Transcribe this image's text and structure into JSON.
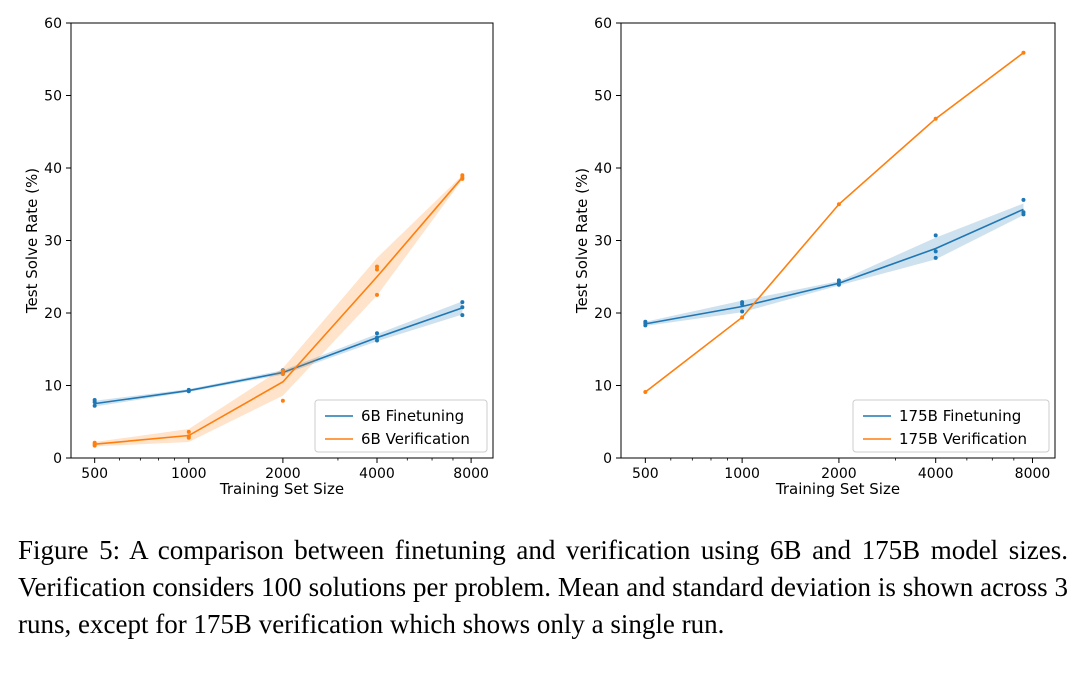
{
  "caption": "Figure 5: A comparison between finetuning and verification using 6B and 175B model sizes. Verification considers 100 solutions per problem. Mean and standard deviation is shown across 3 runs, except for 175B verification which shows only a single run.",
  "colors": {
    "finetuning": "#1f77b4",
    "verification": "#ff7f0e"
  },
  "chart_data": [
    {
      "type": "line",
      "xlabel": "Training Set Size",
      "ylabel": "Test Solve Rate (%)",
      "x_scale": "log2",
      "xlim": [
        420,
        9400
      ],
      "ylim": [
        0,
        60
      ],
      "xticks": [
        500,
        1000,
        2000,
        4000,
        8000
      ],
      "xtick_labels": [
        "500",
        "1000",
        "2000",
        "4000",
        "8000"
      ],
      "yticks": [
        0,
        10,
        20,
        30,
        40,
        50,
        60
      ],
      "legend_position": "lower-right",
      "series": [
        {
          "name": "6B Finetuning",
          "color_key": "finetuning",
          "x": [
            500,
            1000,
            2000,
            4000,
            7500
          ],
          "mean": [
            7.5,
            9.3,
            11.8,
            16.6,
            20.7
          ],
          "band_low": [
            7.1,
            9.1,
            11.5,
            16.1,
            19.8
          ],
          "band_high": [
            7.9,
            9.5,
            12.1,
            17.1,
            21.6
          ],
          "runs": [
            [
              7.2,
              7.7,
              8.0
            ],
            [
              9.2,
              9.3,
              9.4
            ],
            [
              11.6,
              11.8,
              12.1
            ],
            [
              16.2,
              16.6,
              17.2
            ],
            [
              19.7,
              20.8,
              21.5
            ]
          ]
        },
        {
          "name": "6B Verification",
          "color_key": "verification",
          "x": [
            500,
            1000,
            2000,
            4000,
            7500
          ],
          "mean": [
            1.9,
            3.1,
            10.5,
            25.0,
            38.7
          ],
          "band_low": [
            1.6,
            2.2,
            8.6,
            22.4,
            38.4
          ],
          "band_high": [
            2.2,
            4.0,
            12.4,
            27.6,
            39.0
          ],
          "runs": [
            [
              1.7,
              1.9,
              2.1
            ],
            [
              2.8,
              3.0,
              3.6
            ],
            [
              7.9,
              11.6,
              12.0
            ],
            [
              22.5,
              26.0,
              26.4
            ],
            [
              38.5,
              38.7,
              39.0
            ]
          ]
        }
      ]
    },
    {
      "type": "line",
      "xlabel": "Training Set Size",
      "ylabel": "Test Solve Rate (%)",
      "x_scale": "log2",
      "xlim": [
        420,
        9400
      ],
      "ylim": [
        0,
        60
      ],
      "xticks": [
        500,
        1000,
        2000,
        4000,
        8000
      ],
      "xtick_labels": [
        "500",
        "1000",
        "2000",
        "4000",
        "8000"
      ],
      "yticks": [
        0,
        10,
        20,
        30,
        40,
        50,
        60
      ],
      "legend_position": "lower-right",
      "series": [
        {
          "name": "175B Finetuning",
          "color_key": "finetuning",
          "x": [
            500,
            1000,
            2000,
            4000,
            7500
          ],
          "mean": [
            18.5,
            20.9,
            24.1,
            28.9,
            34.3
          ],
          "band_low": [
            18.2,
            20.1,
            23.8,
            27.4,
            33.5
          ],
          "band_high": [
            18.8,
            21.7,
            24.4,
            30.4,
            35.1
          ],
          "runs": [
            [
              18.3,
              18.6,
              18.8
            ],
            [
              20.2,
              21.2,
              21.5
            ],
            [
              23.9,
              24.2,
              24.5
            ],
            [
              27.6,
              28.5,
              30.7
            ],
            [
              33.6,
              33.9,
              35.6
            ]
          ]
        },
        {
          "name": "175B Verification",
          "color_key": "verification",
          "x": [
            500,
            1000,
            2000,
            4000,
            7500
          ],
          "mean": [
            9.1,
            19.4,
            35.0,
            46.8,
            55.9
          ],
          "runs": [
            [
              9.1
            ],
            [
              19.4
            ],
            [
              35.0
            ],
            [
              46.8
            ],
            [
              55.9
            ]
          ]
        }
      ]
    }
  ]
}
